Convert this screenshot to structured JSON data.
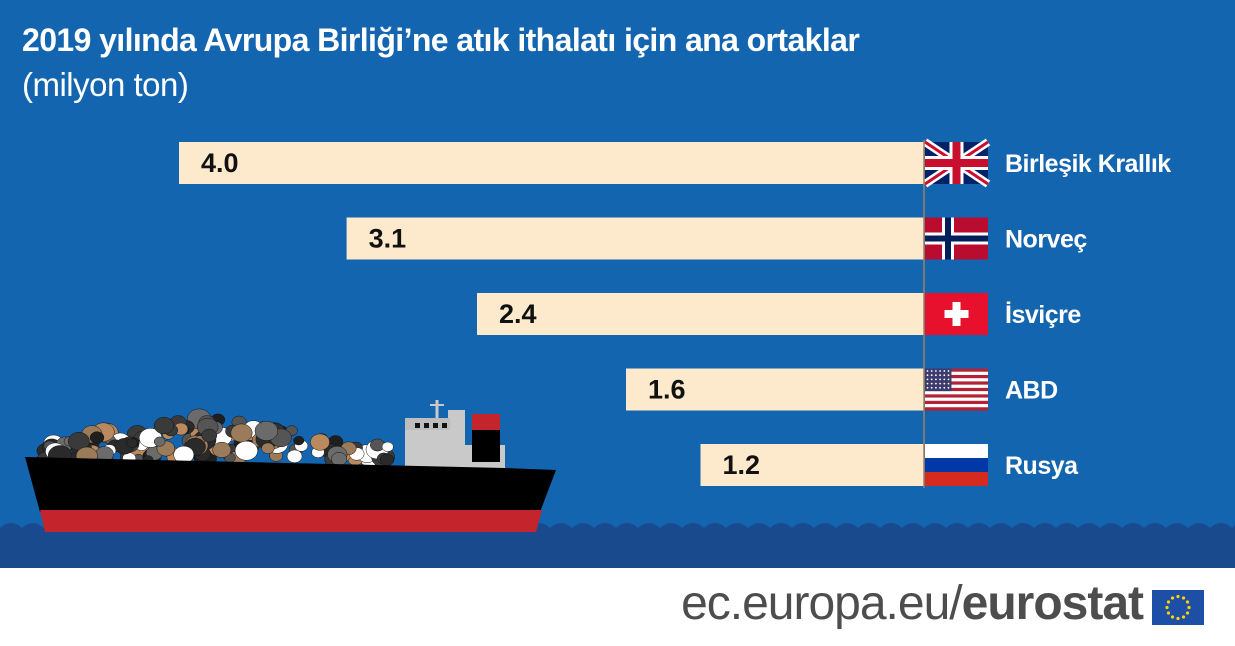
{
  "header": {
    "title": "2019 yılında Avrupa Birliği’ne atık ithalatı için ana ortaklar",
    "subtitle": "(milyon ton)"
  },
  "chart_data": {
    "type": "bar",
    "orientation": "horizontal",
    "categories": [
      "Birleşik Krallık",
      "Norveç",
      "İsviçre",
      "ABD",
      "Rusya"
    ],
    "values": [
      4.0,
      3.1,
      2.4,
      1.6,
      1.2
    ],
    "value_labels": [
      "4.0",
      "3.1",
      "2.4",
      "1.6",
      "1.2"
    ],
    "flags": [
      "uk-flag-icon",
      "norway-flag-icon",
      "switzerland-flag-icon",
      "usa-flag-icon",
      "russia-flag-icon"
    ],
    "xlim": [
      0,
      4.0
    ],
    "title": "2019 yılında Avrupa Birliği’ne atık ithalatı için ana ortaklar",
    "ylabel": "",
    "xlabel": "",
    "grid": false,
    "bar_color": "#fde9cc",
    "axis_color": "#a08060"
  },
  "colors": {
    "background": "#1465b0",
    "sea_dark": "#1a4a8e",
    "hull": "#000000",
    "hull_bottom": "#c4242b",
    "superstructure": "#c9c9c9",
    "funnel_red": "#c4242b"
  },
  "illustration": {
    "ship": "cargo-ship-with-waste-bags"
  },
  "footer": {
    "text_light": "ec.europa.eu/",
    "text_bold": "eurostat",
    "logo": "eu-flag-icon"
  }
}
